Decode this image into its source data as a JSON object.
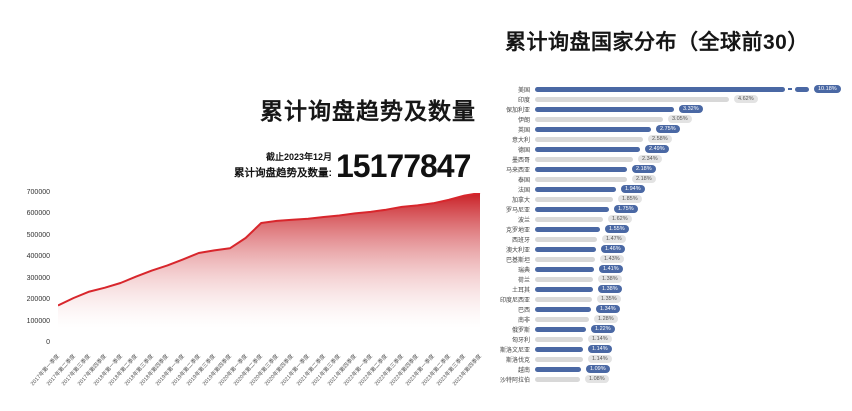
{
  "left_panel": {
    "as_of_label": "截止2023年12月",
    "total_label": "累计询盘趋势及数量:",
    "total_value": "15177847"
  },
  "colors": {
    "area_line": "#d8262c",
    "area_fill_top": "#c92026",
    "bar_blue": "#4a68a4",
    "bar_gray": "#d8d8d8",
    "pill_gray_bg": "#e3e3e3",
    "pill_gray_text": "#555555",
    "pill_blue_text": "#ffffff",
    "title_text": "#161616"
  },
  "chart_data": [
    {
      "type": "area",
      "title": "累计询盘趋势及数量",
      "x": [
        "2017年第一季度",
        "2017年第二季度",
        "2017年第三季度",
        "2017年第四季度",
        "2018年第一季度",
        "2018年第二季度",
        "2018年第三季度",
        "2018年第四季度",
        "2019年第一季度",
        "2019年第二季度",
        "2019年第三季度",
        "2019年第四季度",
        "2020年第一季度",
        "2020年第二季度",
        "2020年第三季度",
        "2020年第四季度",
        "2021年第一季度",
        "2021年第二季度",
        "2021年第三季度",
        "2021年第四季度",
        "2022年第一季度",
        "2022年第二季度",
        "2022年第三季度",
        "2022年第四季度",
        "2023年第一季度",
        "2023年第二季度",
        "2023年第三季度",
        "2023年第四季度"
      ],
      "values": [
        175000,
        210000,
        240000,
        258000,
        280000,
        310000,
        338000,
        362000,
        390000,
        420000,
        432000,
        442000,
        490000,
        560000,
        570000,
        575000,
        580000,
        588000,
        595000,
        605000,
        612000,
        622000,
        635000,
        642000,
        652000,
        668000,
        688000,
        700000
      ],
      "ylim": [
        0,
        700000
      ],
      "yticks": [
        0,
        100000,
        200000,
        300000,
        400000,
        500000,
        600000,
        700000
      ],
      "grid": false,
      "legend": false,
      "annotation": {
        "as_of": "截止2023年12月",
        "cumulative_total": 15177847
      }
    },
    {
      "type": "bar",
      "orientation": "horizontal",
      "title": "累计询盘国家分布（全球前30）",
      "categories": [
        "美国",
        "印度",
        "保加利亚",
        "伊朗",
        "英国",
        "意大利",
        "德国",
        "墨西哥",
        "马来西亚",
        "泰国",
        "法国",
        "加拿大",
        "罗马尼亚",
        "波兰",
        "克罗地亚",
        "西班牙",
        "澳大利亚",
        "巴基斯坦",
        "瑞典",
        "荷兰",
        "土耳其",
        "印度尼西亚",
        "巴西",
        "南非",
        "俄罗斯",
        "匈牙利",
        "斯洛文尼亚",
        "斯洛伐克",
        "越南",
        "沙特阿拉伯"
      ],
      "values": [
        10.18,
        4.62,
        3.32,
        3.05,
        2.75,
        2.58,
        2.49,
        2.34,
        2.18,
        2.18,
        1.94,
        1.85,
        1.75,
        1.62,
        1.55,
        1.47,
        1.46,
        1.43,
        1.41,
        1.38,
        1.38,
        1.35,
        1.34,
        1.28,
        1.22,
        1.14,
        1.14,
        1.14,
        1.09,
        1.08
      ],
      "labels": [
        "10.18%",
        "4.62%",
        "3.32%",
        "3.05%",
        "2.75%",
        "2.58%",
        "2.49%",
        "2.34%",
        "2.18%",
        "2.18%",
        "1.94%",
        "1.85%",
        "1.75%",
        "1.62%",
        "1.55%",
        "1.47%",
        "1.46%",
        "1.43%",
        "1.41%",
        "1.38%",
        "1.38%",
        "1.35%",
        "1.34%",
        "1.28%",
        "1.22%",
        "1.14%",
        "1.14%",
        "1.14%",
        "1.09%",
        "1.08%"
      ],
      "bar_color_pattern": [
        "blue",
        "gray"
      ],
      "axis_break_on_first_bar": true,
      "legend": false,
      "grid": false
    }
  ]
}
